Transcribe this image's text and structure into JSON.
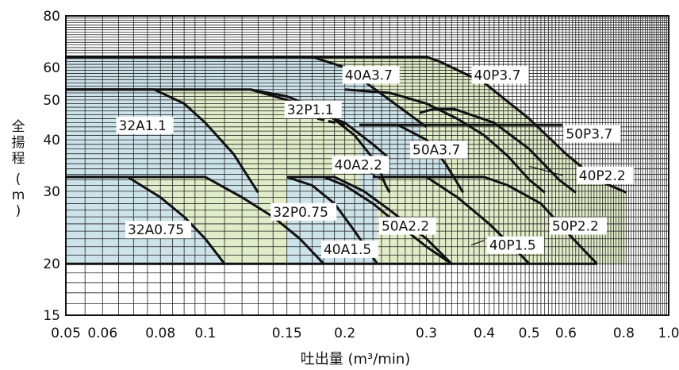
{
  "chart_data": {
    "type": "area",
    "title": "",
    "xlabel": "吐出量 (m³/min)",
    "ylabel": "全揚程 (m)",
    "ylabel_chars": [
      "全",
      "揚",
      "程",
      "(",
      "m",
      ")"
    ],
    "xscale": "log",
    "yscale": "log",
    "xlim": [
      0.05,
      1.0
    ],
    "ylim": [
      15,
      80
    ],
    "xticks": [
      0.05,
      0.06,
      0.08,
      0.1,
      0.15,
      0.2,
      0.3,
      0.4,
      0.5,
      0.6,
      0.8,
      1.0
    ],
    "xtick_labels": [
      "0.05",
      "0.06",
      "0.08",
      "0.1",
      "0.15",
      "0.2",
      "0.3",
      "0.4",
      "0.5",
      "0.6",
      "0.8",
      "1.0"
    ],
    "yticks": [
      15,
      20,
      30,
      40,
      50,
      60,
      80
    ],
    "ytick_labels": [
      "15",
      "20",
      "30",
      "40",
      "50",
      "60",
      "80"
    ],
    "grid": true,
    "colors": {
      "blue_region": "#cde3ea",
      "green_region": "#e1ecc8",
      "curve": "#111111"
    },
    "regions": [
      {
        "name": "40P3.7",
        "color": "green",
        "points": [
          [
            0.05,
            63.6
          ],
          [
            0.3,
            63.6
          ],
          [
            0.32,
            62
          ],
          [
            0.4,
            55
          ],
          [
            0.5,
            45
          ],
          [
            0.6,
            37
          ],
          [
            0.7,
            32
          ],
          [
            0.81,
            29.8
          ],
          [
            0.81,
            20
          ],
          [
            0.05,
            20
          ]
        ]
      },
      {
        "name": "40A3.7",
        "color": "blue",
        "points": [
          [
            0.05,
            63.6
          ],
          [
            0.17,
            63.6
          ],
          [
            0.2,
            60
          ],
          [
            0.25,
            50
          ],
          [
            0.3,
            43
          ],
          [
            0.3,
            20
          ],
          [
            0.05,
            20
          ]
        ]
      },
      {
        "name": "32P1.1",
        "color": "green",
        "points": [
          [
            0.05,
            53
          ],
          [
            0.125,
            53
          ],
          [
            0.15,
            50
          ],
          [
            0.2,
            44
          ],
          [
            0.23,
            39
          ],
          [
            0.25,
            36
          ],
          [
            0.25,
            20
          ],
          [
            0.05,
            20
          ]
        ]
      },
      {
        "name": "32A1.1",
        "color": "blue",
        "points": [
          [
            0.05,
            53
          ],
          [
            0.0775,
            53
          ],
          [
            0.09,
            49
          ],
          [
            0.1,
            44
          ],
          [
            0.115,
            37
          ],
          [
            0.13,
            29.8
          ],
          [
            0.13,
            20
          ],
          [
            0.05,
            20
          ]
        ]
      },
      {
        "name": "50P3.7",
        "color": "green",
        "points": [
          [
            0.29,
            46.5
          ],
          [
            0.31,
            47.5
          ],
          [
            0.345,
            47.5
          ],
          [
            0.42,
            44
          ],
          [
            0.5,
            38
          ],
          [
            0.58,
            32
          ],
          [
            0.63,
            29.8
          ],
          [
            0.63,
            20
          ],
          [
            0.29,
            20
          ]
        ]
      },
      {
        "name": "50A3.7",
        "color": "blue",
        "points": [
          [
            0.215,
            43.5
          ],
          [
            0.26,
            43.5
          ],
          [
            0.3,
            40
          ],
          [
            0.33,
            35
          ],
          [
            0.36,
            29.8
          ],
          [
            0.36,
            20
          ],
          [
            0.215,
            20
          ]
        ]
      },
      {
        "name": "32P0.75",
        "color": "green",
        "points": [
          [
            0.05,
            32.5
          ],
          [
            0.1,
            32.5
          ],
          [
            0.12,
            29
          ],
          [
            0.14,
            26
          ],
          [
            0.16,
            23
          ],
          [
            0.18,
            20
          ],
          [
            0.05,
            20
          ]
        ]
      },
      {
        "name": "32A0.75",
        "color": "blue",
        "points": [
          [
            0.05,
            32.5
          ],
          [
            0.068,
            32.5
          ],
          [
            0.08,
            29
          ],
          [
            0.09,
            26
          ],
          [
            0.1,
            23
          ],
          [
            0.11,
            20
          ],
          [
            0.05,
            20
          ]
        ]
      },
      {
        "name": "50A2.2",
        "color": "blue",
        "points": [
          [
            0.15,
            32.5
          ],
          [
            0.19,
            32.5
          ],
          [
            0.22,
            30
          ],
          [
            0.25,
            27
          ],
          [
            0.3,
            23
          ],
          [
            0.34,
            20
          ],
          [
            0.15,
            20
          ]
        ]
      },
      {
        "name": "50P2.2",
        "color": "green",
        "points": [
          [
            0.235,
            32.5
          ],
          [
            0.4,
            32.5
          ],
          [
            0.45,
            31
          ],
          [
            0.53,
            28
          ],
          [
            0.6,
            24
          ],
          [
            0.7,
            20
          ],
          [
            0.235,
            20
          ]
        ]
      }
    ],
    "curves": [
      {
        "name": "40P3.7",
        "points": [
          [
            0.05,
            63.6
          ],
          [
            0.3,
            63.6
          ],
          [
            0.32,
            62
          ],
          [
            0.4,
            55
          ],
          [
            0.5,
            45
          ],
          [
            0.6,
            37
          ],
          [
            0.7,
            32
          ],
          [
            0.81,
            29.8
          ]
        ]
      },
      {
        "name": "40A3.7",
        "points": [
          [
            0.05,
            63.6
          ],
          [
            0.17,
            63.6
          ],
          [
            0.2,
            60
          ],
          [
            0.25,
            50
          ],
          [
            0.3,
            43
          ]
        ]
      },
      {
        "name": "32P1.1",
        "points": [
          [
            0.05,
            53
          ],
          [
            0.125,
            53
          ],
          [
            0.15,
            50
          ],
          [
            0.2,
            44
          ],
          [
            0.23,
            39
          ],
          [
            0.25,
            36
          ]
        ]
      },
      {
        "name": "32A1.1",
        "points": [
          [
            0.05,
            53
          ],
          [
            0.0775,
            53
          ],
          [
            0.09,
            49
          ],
          [
            0.1,
            44
          ],
          [
            0.115,
            37
          ],
          [
            0.13,
            29.8
          ]
        ]
      },
      {
        "name": "40A2.2",
        "points": [
          [
            0.125,
            53
          ],
          [
            0.15,
            51
          ],
          [
            0.18,
            47
          ],
          [
            0.21,
            41
          ],
          [
            0.235,
            35
          ],
          [
            0.245,
            31
          ],
          [
            0.25,
            29.8
          ]
        ]
      },
      {
        "name": "40P2.2",
        "points": [
          [
            0.2,
            53
          ],
          [
            0.25,
            52
          ],
          [
            0.3,
            49
          ],
          [
            0.35,
            45
          ],
          [
            0.4,
            41
          ],
          [
            0.45,
            36.5
          ],
          [
            0.5,
            32
          ],
          [
            0.54,
            29.8
          ]
        ]
      },
      {
        "name": "50P3.7",
        "points": [
          [
            0.29,
            46.5
          ],
          [
            0.31,
            47.5
          ],
          [
            0.345,
            47.5
          ],
          [
            0.42,
            44
          ],
          [
            0.5,
            38
          ],
          [
            0.58,
            32
          ],
          [
            0.63,
            29.8
          ]
        ]
      },
      {
        "name": "50A3.7",
        "points": [
          [
            0.215,
            43.5
          ],
          [
            0.26,
            43.5
          ],
          [
            0.3,
            40
          ],
          [
            0.33,
            35
          ],
          [
            0.36,
            29.8
          ]
        ]
      },
      {
        "name": "32P0.75",
        "points": [
          [
            0.05,
            32.5
          ],
          [
            0.1,
            32.5
          ],
          [
            0.12,
            29
          ],
          [
            0.14,
            26
          ],
          [
            0.16,
            23
          ],
          [
            0.18,
            20
          ]
        ]
      },
      {
        "name": "32A0.75",
        "points": [
          [
            0.05,
            32.5
          ],
          [
            0.068,
            32.5
          ],
          [
            0.08,
            29
          ],
          [
            0.09,
            26
          ],
          [
            0.1,
            23
          ],
          [
            0.11,
            20
          ]
        ]
      },
      {
        "name": "40A1.5",
        "points": [
          [
            0.15,
            32.5
          ],
          [
            0.17,
            31
          ],
          [
            0.19,
            28
          ],
          [
            0.21,
            24
          ],
          [
            0.235,
            20
          ]
        ]
      },
      {
        "name": "50A2.2",
        "points": [
          [
            0.15,
            32.5
          ],
          [
            0.19,
            32.5
          ],
          [
            0.22,
            30
          ],
          [
            0.25,
            27
          ],
          [
            0.3,
            23
          ],
          [
            0.34,
            20
          ]
        ]
      },
      {
        "name": "40P1.5",
        "points": [
          [
            0.18,
            32.5
          ],
          [
            0.2,
            31
          ],
          [
            0.23,
            28
          ],
          [
            0.26,
            25
          ],
          [
            0.3,
            22
          ],
          [
            0.34,
            20
          ]
        ]
      },
      {
        "name": "40P1.5-b",
        "points": [
          [
            0.24,
            32.5
          ],
          [
            0.3,
            32.5
          ],
          [
            0.35,
            29
          ],
          [
            0.41,
            25
          ],
          [
            0.47,
            21.5
          ],
          [
            0.5,
            20
          ]
        ]
      },
      {
        "name": "50P2.2",
        "points": [
          [
            0.235,
            32.5
          ],
          [
            0.4,
            32.5
          ],
          [
            0.45,
            31
          ],
          [
            0.53,
            28
          ],
          [
            0.6,
            24
          ],
          [
            0.7,
            20
          ]
        ]
      }
    ],
    "hlines": [
      {
        "y": 43.5,
        "x1": 0.215,
        "x2": 0.59
      },
      {
        "y": 32.5,
        "x1": 0.23,
        "x2": 0.4
      },
      {
        "y": 20,
        "x1": 0.05,
        "x2": 0.7
      }
    ],
    "dashed": [
      {
        "points": [
          [
            0.158,
            47.5
          ],
          [
            0.175,
            45
          ],
          [
            0.2,
            43.5
          ]
        ]
      }
    ],
    "labels": [
      {
        "text": "40A3.7",
        "x": 0.2,
        "y": 57
      },
      {
        "text": "40P3.7",
        "x": 0.38,
        "y": 57
      },
      {
        "text": "32P1.1",
        "x": 0.15,
        "y": 47
      },
      {
        "text": "32A1.1",
        "x": 0.065,
        "y": 43
      },
      {
        "text": "50A3.7",
        "x": 0.28,
        "y": 37.5
      },
      {
        "text": "50P3.7",
        "x": 0.6,
        "y": 41
      },
      {
        "text": "40A2.2",
        "x": 0.19,
        "y": 34.5
      },
      {
        "text": "40P2.2",
        "x": 0.64,
        "y": 32.5
      },
      {
        "text": "32P0.75",
        "x": 0.14,
        "y": 26.5
      },
      {
        "text": "50A2.2",
        "x": 0.24,
        "y": 24.5
      },
      {
        "text": "50P2.2",
        "x": 0.56,
        "y": 24.5
      },
      {
        "text": "32A0.75",
        "x": 0.068,
        "y": 24
      },
      {
        "text": "40A1.5",
        "x": 0.18,
        "y": 21.5
      },
      {
        "text": "40P1.5",
        "x": 0.41,
        "y": 22
      }
    ],
    "leaders": [
      {
        "label": "40A2.2",
        "x1": 0.22,
        "y1": 34,
        "x2": 0.245,
        "y2": 31.5
      },
      {
        "label": "40P2.2",
        "x1": 0.59,
        "y1": 32.8,
        "x2": 0.5,
        "y2": 34.5
      },
      {
        "label": "40A1.5",
        "x1": 0.2,
        "y1": 21.6,
        "x2": 0.22,
        "y2": 22.2
      },
      {
        "label": "40P1.5",
        "x1": 0.375,
        "y1": 22.2,
        "x2": 0.4,
        "y2": 22.8
      }
    ]
  }
}
